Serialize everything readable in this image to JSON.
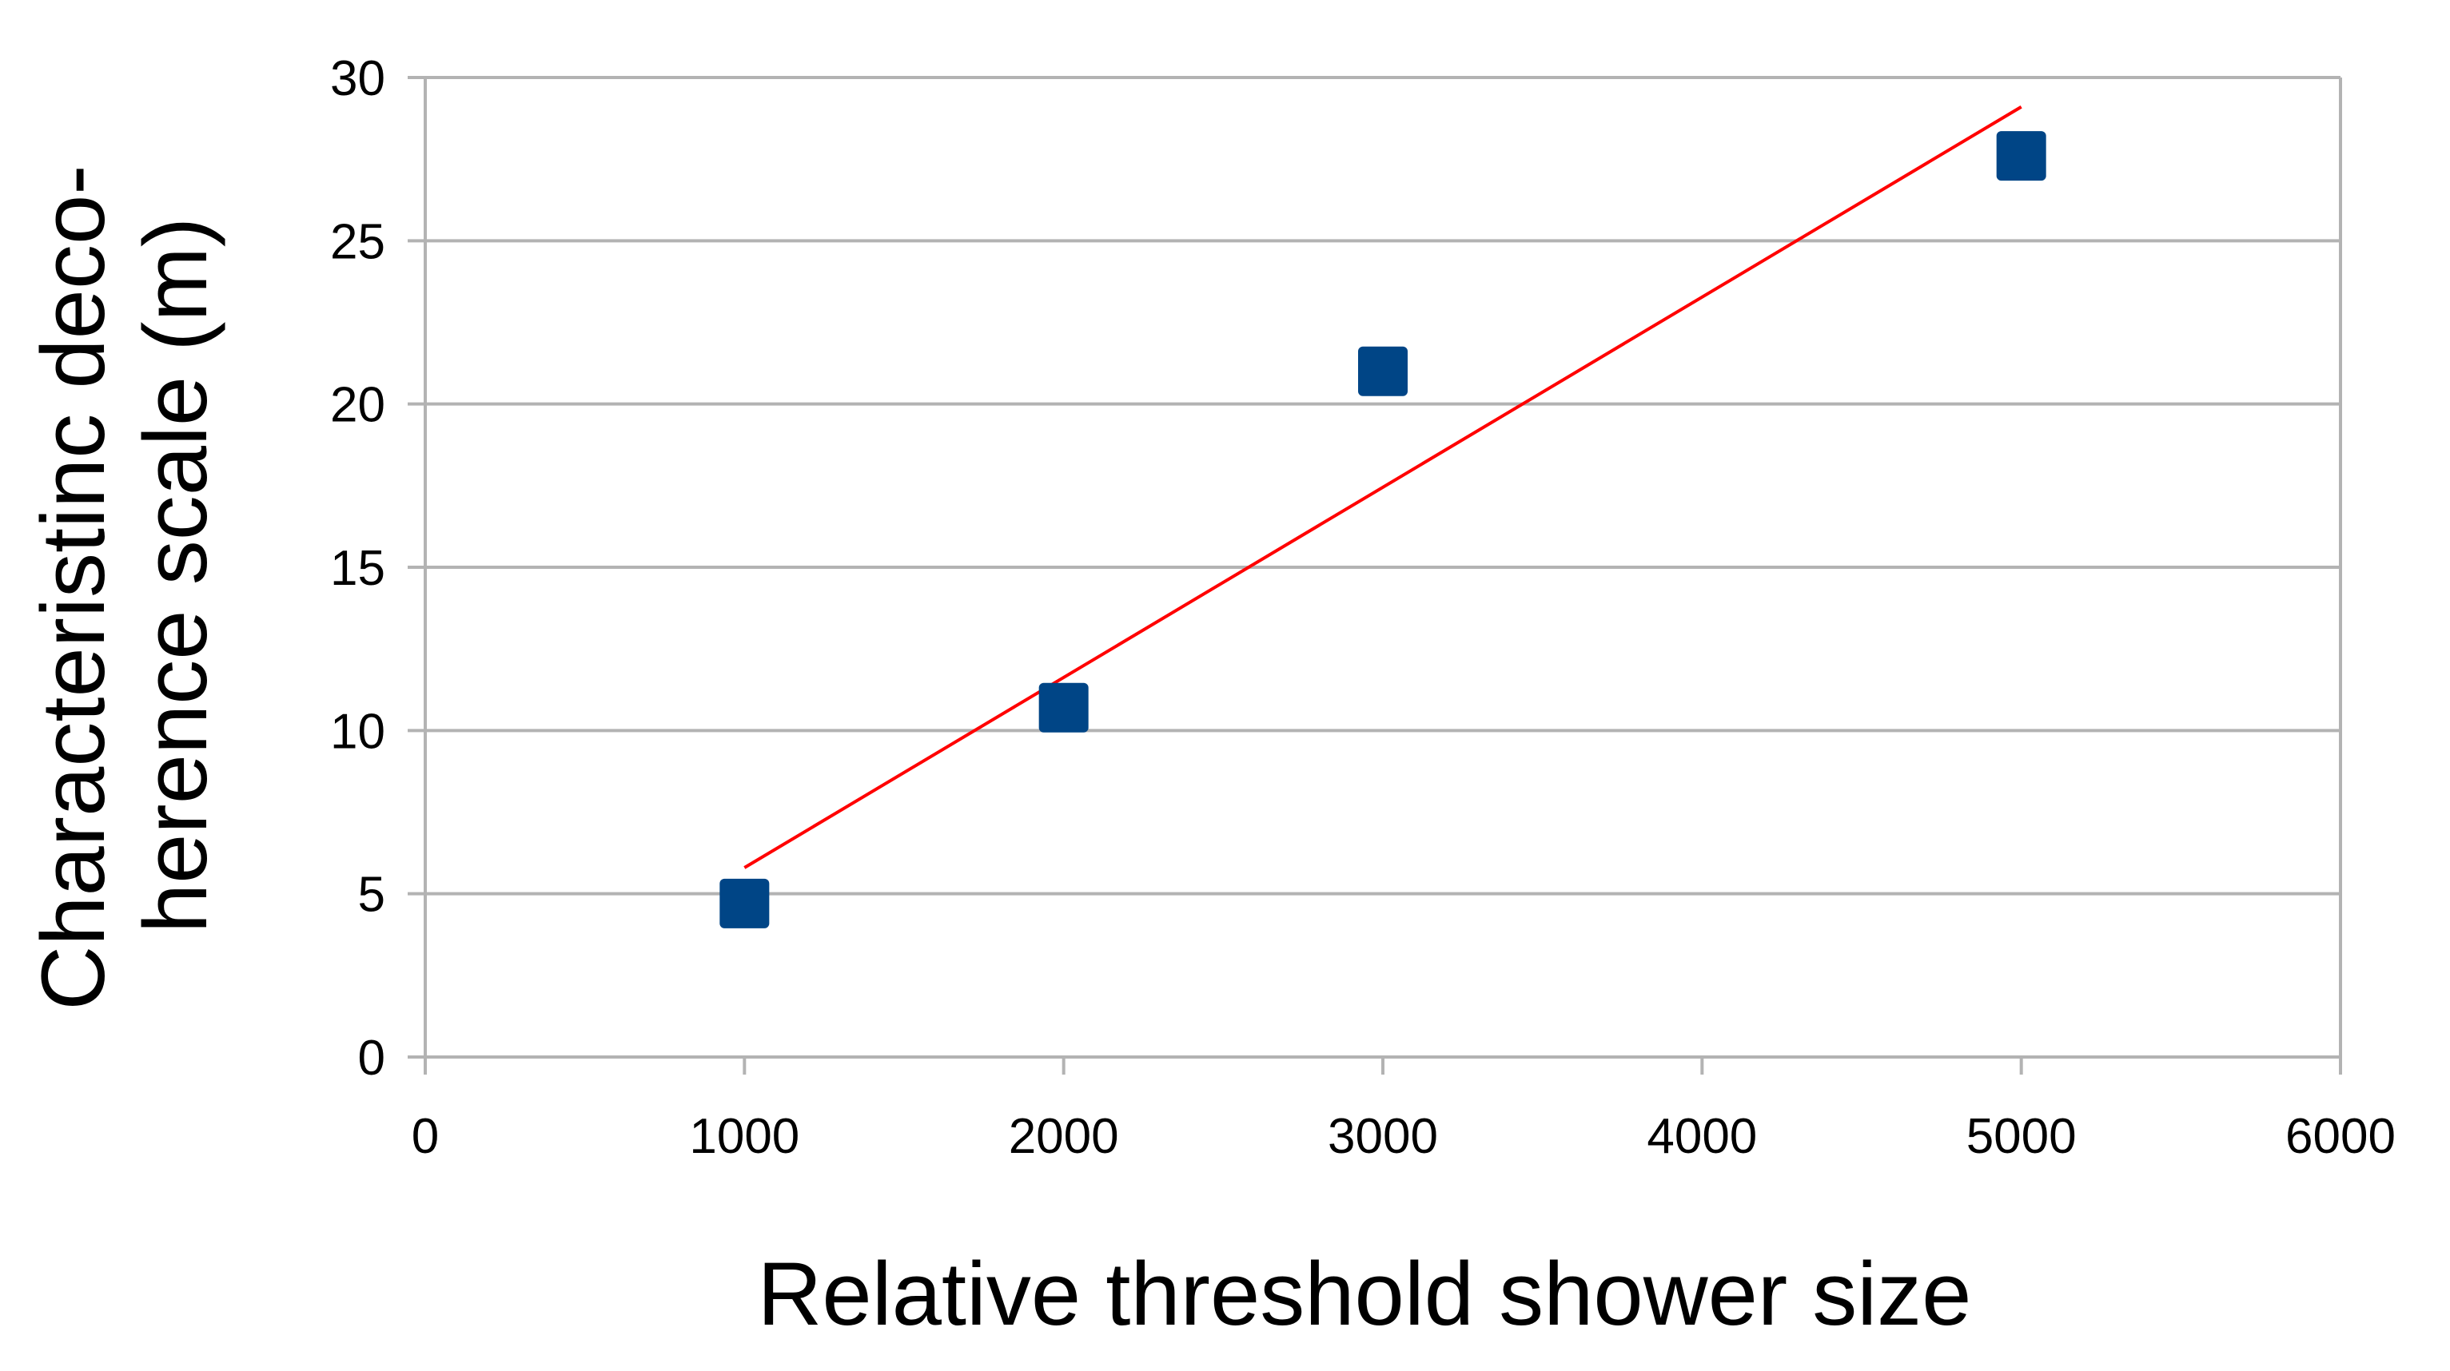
{
  "chart_data": {
    "type": "scatter",
    "title": "",
    "xlabel": "Relative threshold shower size",
    "ylabel_lines": [
      "Characteristinc deco-",
      "herence scale (m)"
    ],
    "xlim": [
      0,
      6000
    ],
    "ylim": [
      0,
      30
    ],
    "x_ticks": [
      0,
      1000,
      2000,
      3000,
      4000,
      5000,
      6000
    ],
    "y_ticks": [
      0,
      5,
      10,
      15,
      20,
      25,
      30
    ],
    "grid": "horizontal",
    "legend": "none",
    "series": [
      {
        "x": [
          1000,
          2000,
          3000,
          5000
        ],
        "y": [
          4.7,
          10.7,
          21.0,
          27.6
        ],
        "marker": "square",
        "color": "#004586"
      }
    ],
    "trendline": {
      "type": "linear",
      "x": [
        1000,
        5000
      ],
      "y": [
        5.8,
        29.1
      ],
      "color": "#ff0000"
    },
    "colors": {
      "grid": "#b3b3b3",
      "axis": "#b3b3b3"
    }
  }
}
